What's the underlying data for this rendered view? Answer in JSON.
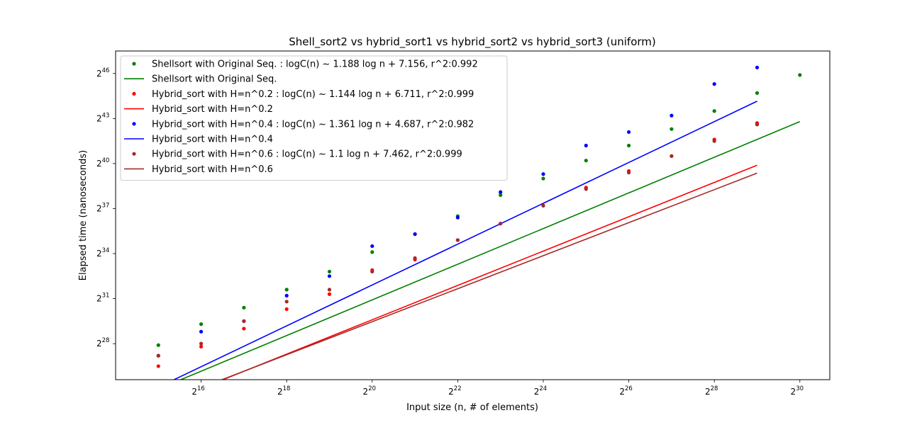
{
  "chart_data": {
    "type": "scatter",
    "title": "Shell_sort2 vs  hybrid_sort1 vs hybrid_sort2 vs hybrid_sort3  (uniform)",
    "xlabel": "Input size (n, # of elements)",
    "ylabel": "Elapsed time (nanoseconds)",
    "x_scale": "log2",
    "y_scale": "log2",
    "xlim_exp": [
      14.0,
      30.7
    ],
    "ylim_exp": [
      25.6,
      47.5
    ],
    "x_ticks": [
      {
        "base": "2",
        "exp": "16",
        "value": 16
      },
      {
        "base": "2",
        "exp": "18",
        "value": 18
      },
      {
        "base": "2",
        "exp": "20",
        "value": 20
      },
      {
        "base": "2",
        "exp": "22",
        "value": 22
      },
      {
        "base": "2",
        "exp": "24",
        "value": 24
      },
      {
        "base": "2",
        "exp": "26",
        "value": 26
      },
      {
        "base": "2",
        "exp": "28",
        "value": 28
      },
      {
        "base": "2",
        "exp": "30",
        "value": 30
      }
    ],
    "y_ticks": [
      {
        "base": "2",
        "exp": "28",
        "value": 28
      },
      {
        "base": "2",
        "exp": "31",
        "value": 31
      },
      {
        "base": "2",
        "exp": "34",
        "value": 34
      },
      {
        "base": "2",
        "exp": "37",
        "value": 37
      },
      {
        "base": "2",
        "exp": "40",
        "value": 40
      },
      {
        "base": "2",
        "exp": "43",
        "value": 43
      },
      {
        "base": "2",
        "exp": "46",
        "value": 46
      }
    ],
    "grid": false,
    "legend_position": "top-left",
    "series": [
      {
        "name": "Shellsort with Original Seq. : logC(n) ~ 1.188 log n  + 7.156, r^2:0.992",
        "fit_name": "Shellsort with Original Seq.",
        "color": "#008000",
        "fit": {
          "slope": 1.188,
          "intercept": 7.156,
          "x_range": [
            15,
            30
          ]
        },
        "points": [
          {
            "x": 15,
            "y": 27.9
          },
          {
            "x": 16,
            "y": 29.3
          },
          {
            "x": 17,
            "y": 30.4
          },
          {
            "x": 18,
            "y": 31.6
          },
          {
            "x": 19,
            "y": 32.8
          },
          {
            "x": 20,
            "y": 34.1
          },
          {
            "x": 21,
            "y": 35.3
          },
          {
            "x": 22,
            "y": 36.5
          },
          {
            "x": 23,
            "y": 37.9
          },
          {
            "x": 24,
            "y": 39.0
          },
          {
            "x": 25,
            "y": 40.2
          },
          {
            "x": 26,
            "y": 41.2
          },
          {
            "x": 27,
            "y": 42.3
          },
          {
            "x": 28,
            "y": 43.5
          },
          {
            "x": 29,
            "y": 44.7
          },
          {
            "x": 30,
            "y": 45.9
          }
        ]
      },
      {
        "name": "Hybrid_sort with H=n^0.2 : logC(n) ~ 1.144 log n  + 6.711, r^2:0.999",
        "fit_name": "Hybrid_sort with H=n^0.2",
        "color": "#ff0000",
        "fit": {
          "slope": 1.144,
          "intercept": 6.711,
          "x_range": [
            15,
            29
          ]
        },
        "points": [
          {
            "x": 15,
            "y": 26.5
          },
          {
            "x": 16,
            "y": 27.8
          },
          {
            "x": 17,
            "y": 29.0
          },
          {
            "x": 18,
            "y": 30.3
          },
          {
            "x": 19,
            "y": 31.3
          },
          {
            "x": 20,
            "y": 32.9
          },
          {
            "x": 21,
            "y": 33.6
          },
          {
            "x": 22,
            "y": 34.9
          },
          {
            "x": 23,
            "y": 36.0
          },
          {
            "x": 24,
            "y": 37.2
          },
          {
            "x": 25,
            "y": 38.4
          },
          {
            "x": 26,
            "y": 39.5
          },
          {
            "x": 27,
            "y": 40.5
          },
          {
            "x": 28,
            "y": 41.6
          },
          {
            "x": 29,
            "y": 42.7
          }
        ]
      },
      {
        "name": "Hybrid_sort with H=n^0.4 : logC(n) ~ 1.361 log n  + 4.687, r^2:0.982",
        "fit_name": "Hybrid_sort with H=n^0.4",
        "color": "#0000ff",
        "fit": {
          "slope": 1.361,
          "intercept": 4.687,
          "x_range": [
            15,
            29
          ]
        },
        "points": [
          {
            "x": 15,
            "y": 27.2
          },
          {
            "x": 16,
            "y": 28.8
          },
          {
            "x": 17,
            "y": 29.5
          },
          {
            "x": 18,
            "y": 31.2
          },
          {
            "x": 19,
            "y": 32.5
          },
          {
            "x": 20,
            "y": 34.5
          },
          {
            "x": 21,
            "y": 35.3
          },
          {
            "x": 22,
            "y": 36.4
          },
          {
            "x": 23,
            "y": 38.1
          },
          {
            "x": 24,
            "y": 39.3
          },
          {
            "x": 25,
            "y": 41.2
          },
          {
            "x": 26,
            "y": 42.1
          },
          {
            "x": 27,
            "y": 43.2
          },
          {
            "x": 28,
            "y": 45.3
          },
          {
            "x": 29,
            "y": 46.4
          }
        ]
      },
      {
        "name": "Hybrid_sort with H=n^0.6 : logC(n) ~ 1.1 log n  + 7.462, r^2:0.999",
        "fit_name": "Hybrid_sort with H=n^0.6",
        "color": "#a52a2a",
        "fit": {
          "slope": 1.1,
          "intercept": 7.462,
          "x_range": [
            15,
            29
          ]
        },
        "points": [
          {
            "x": 15,
            "y": 27.2
          },
          {
            "x": 16,
            "y": 28.0
          },
          {
            "x": 17,
            "y": 29.5
          },
          {
            "x": 18,
            "y": 30.8
          },
          {
            "x": 19,
            "y": 31.6
          },
          {
            "x": 20,
            "y": 32.8
          },
          {
            "x": 21,
            "y": 33.7
          },
          {
            "x": 22,
            "y": 34.9
          },
          {
            "x": 23,
            "y": 36.0
          },
          {
            "x": 24,
            "y": 37.2
          },
          {
            "x": 25,
            "y": 38.3
          },
          {
            "x": 26,
            "y": 39.4
          },
          {
            "x": 27,
            "y": 40.5
          },
          {
            "x": 28,
            "y": 41.5
          },
          {
            "x": 29,
            "y": 42.6
          }
        ]
      }
    ]
  }
}
